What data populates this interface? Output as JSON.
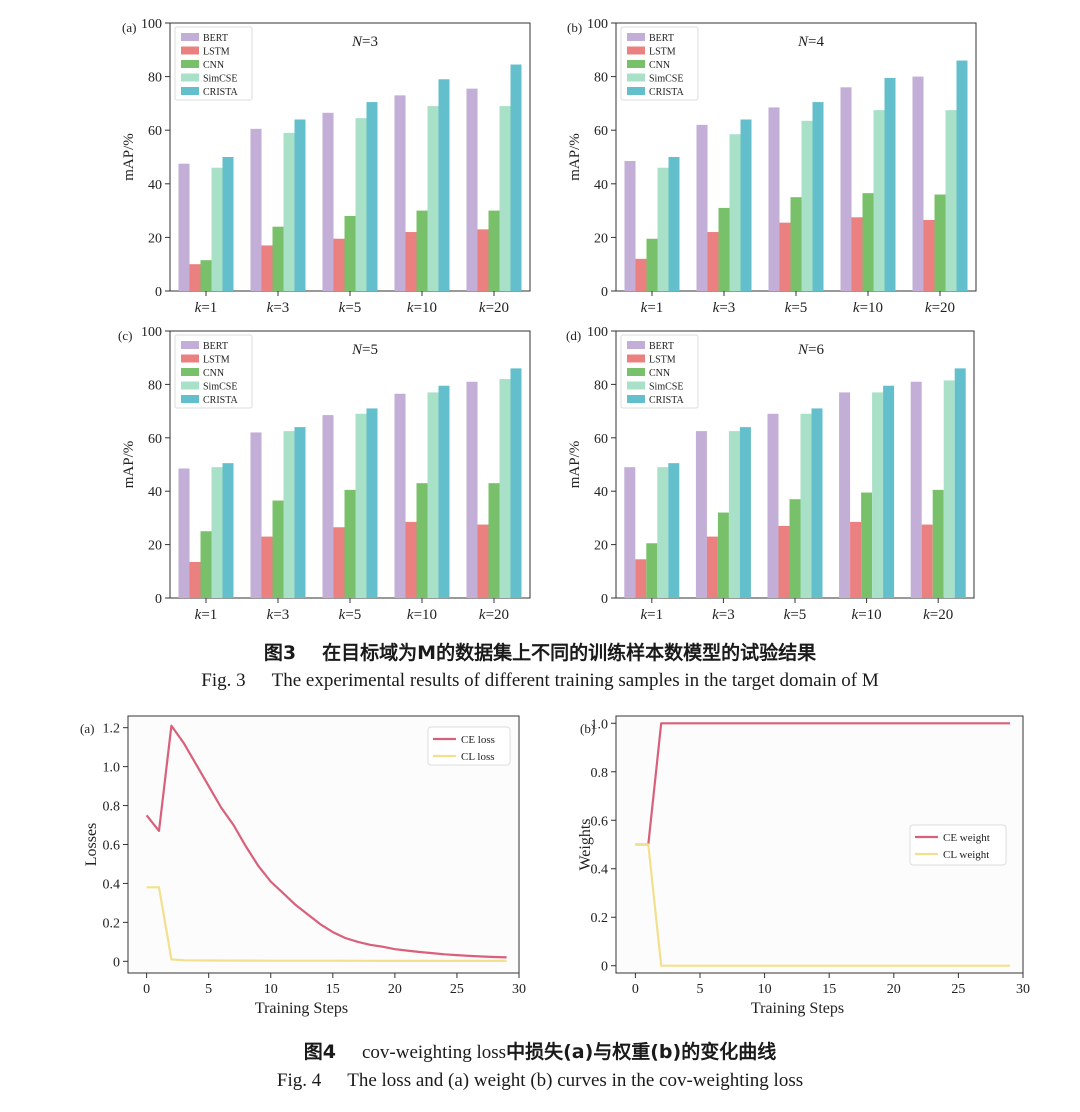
{
  "figure3": {
    "caption_cn_num": "图3",
    "caption_cn_text": "在目标域为M的数据集上不同的训练样本数模型的试验结果",
    "caption_en_num": "Fig. 3",
    "caption_en_text": "The experimental results of different training samples in the target domain of M"
  },
  "figure4": {
    "caption_cn_num": "图4",
    "caption_cn_text_a": "cov-weighting loss",
    "caption_cn_text_b": "中损失(a)与权重(b)的变化曲线",
    "caption_en_num": "Fig. 4",
    "caption_en_text": "The loss and (a) weight (b) curves in the cov-weighting loss"
  },
  "colors": {
    "BERT": "#c2aed6",
    "LSTM": "#ea8080",
    "CNN": "#78c069",
    "SimCSE": "#a9e0c8",
    "CRISTA": "#63bfcc",
    "ce_line": "#d9607a",
    "cl_line": "#f3e08e"
  },
  "chart_data": [
    {
      "panel": "(a)",
      "type": "bar",
      "title": "N=3",
      "title_italic": "N",
      "title_rest": "=3",
      "xlabel": "",
      "ylabel": "mAP/%",
      "ylim": [
        0,
        100
      ],
      "yticks": [
        0,
        20,
        40,
        60,
        80,
        100
      ],
      "categories": [
        "k=1",
        "k=3",
        "k=5",
        "k=10",
        "k=20"
      ],
      "series": [
        {
          "name": "BERT",
          "values": [
            47.5,
            60.5,
            66.5,
            73,
            75.5
          ]
        },
        {
          "name": "LSTM",
          "values": [
            10,
            17,
            19.5,
            22,
            23
          ]
        },
        {
          "name": "CNN",
          "values": [
            11.5,
            24,
            28,
            30,
            30
          ]
        },
        {
          "name": "SimCSE",
          "values": [
            46,
            59,
            64.5,
            69,
            69
          ]
        },
        {
          "name": "CRISTA",
          "values": [
            50,
            64,
            70.5,
            79,
            84.5
          ]
        }
      ]
    },
    {
      "panel": "(b)",
      "type": "bar",
      "title": "N=4",
      "title_italic": "N",
      "title_rest": "=4",
      "xlabel": "",
      "ylabel": "mAP/%",
      "ylim": [
        0,
        100
      ],
      "yticks": [
        0,
        20,
        40,
        60,
        80,
        100
      ],
      "categories": [
        "k=1",
        "k=3",
        "k=5",
        "k=10",
        "k=20"
      ],
      "series": [
        {
          "name": "BERT",
          "values": [
            48.5,
            62,
            68.5,
            76,
            80
          ]
        },
        {
          "name": "LSTM",
          "values": [
            12,
            22,
            25.5,
            27.5,
            26.5
          ]
        },
        {
          "name": "CNN",
          "values": [
            19.5,
            31,
            35,
            36.5,
            36
          ]
        },
        {
          "name": "SimCSE",
          "values": [
            46,
            58.5,
            63.5,
            67.5,
            67.5
          ]
        },
        {
          "name": "CRISTA",
          "values": [
            50,
            64,
            70.5,
            79.5,
            86
          ]
        }
      ]
    },
    {
      "panel": "(c)",
      "type": "bar",
      "title": "N=5",
      "title_italic": "N",
      "title_rest": "=5",
      "xlabel": "",
      "ylabel": "mAP/%",
      "ylim": [
        0,
        100
      ],
      "yticks": [
        0,
        20,
        40,
        60,
        80,
        100
      ],
      "categories": [
        "k=1",
        "k=3",
        "k=5",
        "k=10",
        "k=20"
      ],
      "series": [
        {
          "name": "BERT",
          "values": [
            48.5,
            62,
            68.5,
            76.5,
            81
          ]
        },
        {
          "name": "LSTM",
          "values": [
            13.5,
            23,
            26.5,
            28.5,
            27.5
          ]
        },
        {
          "name": "CNN",
          "values": [
            25,
            36.5,
            40.5,
            43,
            43
          ]
        },
        {
          "name": "SimCSE",
          "values": [
            49,
            62.5,
            69,
            77,
            82
          ]
        },
        {
          "name": "CRISTA",
          "values": [
            50.5,
            64,
            71,
            79.5,
            86
          ]
        }
      ]
    },
    {
      "panel": "(d)",
      "type": "bar",
      "title": "N=6",
      "title_italic": "N",
      "title_rest": "=6",
      "xlabel": "",
      "ylabel": "mAP/%",
      "ylim": [
        0,
        100
      ],
      "yticks": [
        0,
        20,
        40,
        60,
        80,
        100
      ],
      "categories": [
        "k=1",
        "k=3",
        "k=5",
        "k=10",
        "k=20"
      ],
      "series": [
        {
          "name": "BERT",
          "values": [
            49,
            62.5,
            69,
            77,
            81
          ]
        },
        {
          "name": "LSTM",
          "values": [
            14.5,
            23,
            27,
            28.5,
            27.5
          ]
        },
        {
          "name": "CNN",
          "values": [
            20.5,
            32,
            37,
            39.5,
            40.5
          ]
        },
        {
          "name": "SimCSE",
          "values": [
            49,
            62.5,
            69,
            77,
            81.5
          ]
        },
        {
          "name": "CRISTA",
          "values": [
            50.5,
            64,
            71,
            79.5,
            86
          ]
        }
      ]
    },
    {
      "panel": "(a)",
      "type": "line",
      "title": "",
      "xlabel": "Training Steps",
      "ylabel": "Losses",
      "xlim": [
        -1.5,
        30
      ],
      "ylim": [
        -0.06,
        1.26
      ],
      "xticks": [
        0,
        5,
        10,
        15,
        20,
        25,
        30
      ],
      "yticks": [
        0,
        0.2,
        0.4,
        0.6,
        0.8,
        1.0,
        1.2
      ],
      "ytick_labels": [
        "0",
        "0.2",
        "0.4",
        "0.6",
        "0.8",
        "1.0",
        "1.2"
      ],
      "series": [
        {
          "name": "CE loss",
          "x": [
            0,
            1,
            2,
            3,
            4,
            5,
            6,
            7,
            8,
            9,
            10,
            11,
            12,
            13,
            14,
            15,
            16,
            17,
            18,
            19,
            20,
            21,
            22,
            23,
            24,
            25,
            26,
            27,
            28,
            29
          ],
          "y": [
            0.75,
            0.67,
            1.21,
            1.12,
            1.01,
            0.9,
            0.79,
            0.7,
            0.59,
            0.49,
            0.41,
            0.35,
            0.29,
            0.24,
            0.19,
            0.15,
            0.12,
            0.1,
            0.085,
            0.075,
            0.062,
            0.055,
            0.048,
            0.042,
            0.036,
            0.032,
            0.028,
            0.025,
            0.022,
            0.02
          ]
        },
        {
          "name": "CL loss",
          "x": [
            0,
            1,
            2,
            3,
            5,
            10,
            15,
            20,
            25,
            29
          ],
          "y": [
            0.38,
            0.38,
            0.01,
            0.005,
            0.004,
            0.003,
            0.003,
            0.002,
            0.002,
            0.002
          ]
        }
      ],
      "legend": "top-right"
    },
    {
      "panel": "(b)",
      "type": "line",
      "title": "",
      "xlabel": "Training Steps",
      "ylabel": "Weights",
      "xlim": [
        -1.5,
        30
      ],
      "ylim": [
        -0.03,
        1.03
      ],
      "xticks": [
        0,
        5,
        10,
        15,
        20,
        25,
        30
      ],
      "yticks": [
        0,
        0.2,
        0.4,
        0.6,
        0.8,
        1.0
      ],
      "ytick_labels": [
        "0",
        "0.2",
        "0.4",
        "0.6",
        "0.8",
        "1.0"
      ],
      "series": [
        {
          "name": "CE weight",
          "x": [
            0,
            1,
            2,
            29
          ],
          "y": [
            0.5,
            0.5,
            1.0,
            1.0
          ]
        },
        {
          "name": "CL weight",
          "x": [
            0,
            1,
            2,
            29
          ],
          "y": [
            0.5,
            0.5,
            0.0,
            0.0
          ]
        }
      ],
      "legend": "center-right"
    }
  ]
}
